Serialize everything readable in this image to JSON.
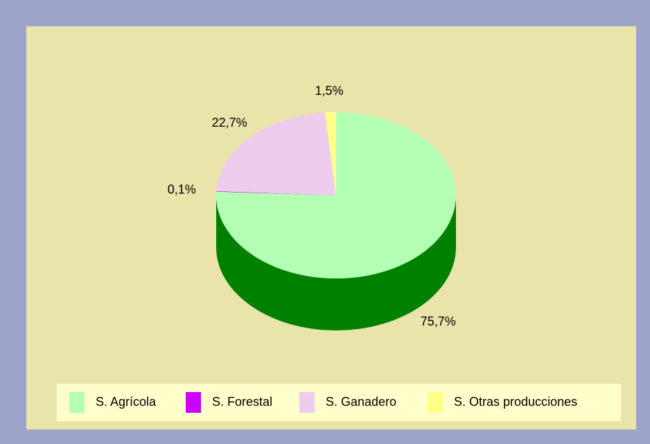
{
  "chart_data": {
    "type": "pie",
    "categories": [
      "S. Agrícola",
      "S. Forestal",
      "S. Ganadero",
      "S. Otras producciones"
    ],
    "values": [
      75.7,
      0.1,
      22.7,
      1.5
    ],
    "value_labels": [
      "75,7%",
      "0,1%",
      "22,7%",
      "1,5%"
    ],
    "colors": [
      "#b3ffb3",
      "#cc00ff",
      "#eeccee",
      "#ffff88"
    ],
    "side_colors": [
      "#008000",
      "#660080",
      "#a080a0",
      "#a0a040"
    ],
    "legend": "bottom"
  }
}
